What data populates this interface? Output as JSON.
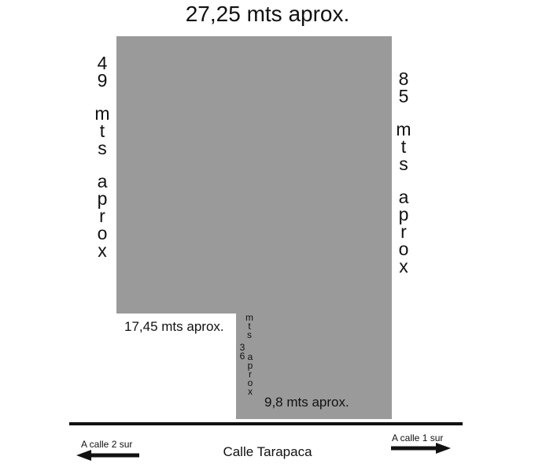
{
  "labels": {
    "top_width": "27,25 mts aprox.",
    "left_height": [
      "4",
      "9",
      "",
      "m",
      "t",
      "s",
      "",
      "a",
      "p",
      "r",
      "o",
      "x"
    ],
    "right_height": [
      "8",
      "5",
      "",
      "m",
      "t",
      "s",
      "",
      "a",
      "p",
      "r",
      "o",
      "x"
    ],
    "inner_width": "17,45 mts aprox.",
    "inner_height_left": [
      "m",
      "t",
      "s"
    ],
    "inner_height_number": [
      "3",
      "6"
    ],
    "inner_height_right": [
      "a",
      "p",
      "r",
      "o",
      "x"
    ],
    "bottom_width": "9,8 mts aprox.",
    "street": "Calle Tarapaca",
    "left_direction": "A calle 2 sur",
    "right_direction": "A calle 1 sur"
  },
  "colors": {
    "lot_fill": "#9a9a9a",
    "street_line": "#111111",
    "text": "#111111"
  }
}
